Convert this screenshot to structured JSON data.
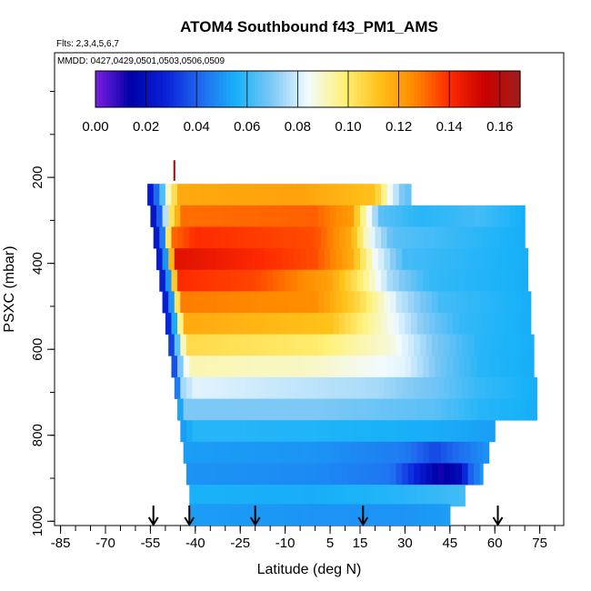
{
  "chart_data": {
    "type": "heatmap",
    "title": "ATOM4 Southbound f43_PM1_AMS",
    "subtitle_flights": "Flts: 2,3,4,5,6,7",
    "subtitle_dates": "MMDD: 0427,0429,0501,0503,0506,0509",
    "xlabel": "Latitude (deg N)",
    "ylabel": "PSXC (mbar)",
    "xlim": [
      -87,
      83
    ],
    "ylim": [
      1010,
      -90
    ],
    "x_ticks": [
      -85,
      -70,
      -55,
      -40,
      -25,
      -10,
      5,
      15,
      30,
      45,
      60,
      75
    ],
    "x_tick_labels": [
      "-85",
      "-70",
      "-55",
      "-40",
      "-25",
      "-10",
      "5",
      "15",
      "30",
      "45",
      "60",
      "75"
    ],
    "y_ticks": [
      200,
      400,
      600,
      800,
      1000
    ],
    "y_tick_labels": [
      "200",
      "400",
      "600",
      "800",
      "1000"
    ],
    "colorbar": {
      "min": 0.0,
      "max": 0.168,
      "ticks": [
        0.0,
        0.02,
        0.04,
        0.06,
        0.08,
        0.1,
        0.12,
        0.14,
        0.16
      ],
      "tick_labels": [
        "0.00",
        "0.02",
        "0.04",
        "0.06",
        "0.08",
        "0.10",
        "0.12",
        "0.14",
        "0.16"
      ],
      "colors": [
        "#7a1fe0",
        "#0000a8",
        "#0a22d8",
        "#1f6cf0",
        "#19b2f8",
        "#7ec8f5",
        "#f2fbff",
        "#fff27a",
        "#ffc21a",
        "#ff8a00",
        "#ff2a00",
        "#c80000",
        "#a01e1e"
      ]
    },
    "levels": [
      {
        "p": 240,
        "lat_min": -56,
        "lat_max": 32,
        "anchors": [
          [
            -56,
            0.016
          ],
          [
            -52,
            0.05
          ],
          [
            -49,
            0.09
          ],
          [
            -45,
            0.118
          ],
          [
            -5,
            0.12
          ],
          [
            20,
            0.112
          ],
          [
            25,
            0.085
          ],
          [
            29,
            0.07
          ],
          [
            32,
            0.065
          ]
        ]
      },
      {
        "p": 290,
        "lat_min": -55,
        "lat_max": 70,
        "anchors": [
          [
            -55,
            0.014
          ],
          [
            -52,
            0.04
          ],
          [
            -49,
            0.095
          ],
          [
            -44,
            0.13
          ],
          [
            0,
            0.132
          ],
          [
            12,
            0.122
          ],
          [
            17,
            0.09
          ],
          [
            22,
            0.065
          ],
          [
            35,
            0.058
          ],
          [
            55,
            0.062
          ],
          [
            70,
            0.055
          ]
        ]
      },
      {
        "p": 340,
        "lat_min": -54,
        "lat_max": 70,
        "anchors": [
          [
            -54,
            0.014
          ],
          [
            -51,
            0.045
          ],
          [
            -48,
            0.13
          ],
          [
            -40,
            0.14
          ],
          [
            0,
            0.135
          ],
          [
            12,
            0.118
          ],
          [
            18,
            0.085
          ],
          [
            26,
            0.065
          ],
          [
            70,
            0.055
          ]
        ]
      },
      {
        "p": 390,
        "lat_min": -53,
        "lat_max": 71,
        "anchors": [
          [
            -53,
            0.014
          ],
          [
            -50,
            0.05
          ],
          [
            -47,
            0.148
          ],
          [
            -38,
            0.146
          ],
          [
            0,
            0.135
          ],
          [
            12,
            0.118
          ],
          [
            20,
            0.085
          ],
          [
            30,
            0.062
          ],
          [
            71,
            0.055
          ]
        ]
      },
      {
        "p": 440,
        "lat_min": -52,
        "lat_max": 71,
        "anchors": [
          [
            -52,
            0.014
          ],
          [
            -49,
            0.05
          ],
          [
            -46,
            0.14
          ],
          [
            -20,
            0.136
          ],
          [
            5,
            0.12
          ],
          [
            15,
            0.1
          ],
          [
            25,
            0.075
          ],
          [
            38,
            0.06
          ],
          [
            71,
            0.055
          ]
        ]
      },
      {
        "p": 490,
        "lat_min": -51,
        "lat_max": 72,
        "anchors": [
          [
            -51,
            0.014
          ],
          [
            -48,
            0.05
          ],
          [
            -45,
            0.128
          ],
          [
            0,
            0.125
          ],
          [
            15,
            0.105
          ],
          [
            28,
            0.078
          ],
          [
            42,
            0.062
          ],
          [
            72,
            0.055
          ]
        ]
      },
      {
        "p": 540,
        "lat_min": -50,
        "lat_max": 72,
        "anchors": [
          [
            -50,
            0.016
          ],
          [
            -47,
            0.055
          ],
          [
            -44,
            0.118
          ],
          [
            5,
            0.112
          ],
          [
            22,
            0.09
          ],
          [
            35,
            0.072
          ],
          [
            48,
            0.06
          ],
          [
            72,
            0.055
          ]
        ]
      },
      {
        "p": 590,
        "lat_min": -49,
        "lat_max": 73,
        "anchors": [
          [
            -49,
            0.018
          ],
          [
            -46,
            0.065
          ],
          [
            -43,
            0.105
          ],
          [
            0,
            0.1
          ],
          [
            25,
            0.088
          ],
          [
            40,
            0.07
          ],
          [
            55,
            0.058
          ],
          [
            73,
            0.055
          ]
        ]
      },
      {
        "p": 640,
        "lat_min": -48,
        "lat_max": 73,
        "anchors": [
          [
            -48,
            0.02
          ],
          [
            -45,
            0.07
          ],
          [
            -42,
            0.092
          ],
          [
            0,
            0.09
          ],
          [
            30,
            0.082
          ],
          [
            42,
            0.068
          ],
          [
            55,
            0.058
          ],
          [
            73,
            0.055
          ]
        ]
      },
      {
        "p": 690,
        "lat_min": -47,
        "lat_max": 74,
        "anchors": [
          [
            -47,
            0.03
          ],
          [
            -44,
            0.075
          ],
          [
            -40,
            0.082
          ],
          [
            20,
            0.075
          ],
          [
            40,
            0.068
          ],
          [
            55,
            0.06
          ],
          [
            74,
            0.055
          ]
        ]
      },
      {
        "p": 740,
        "lat_min": -46,
        "lat_max": 74,
        "anchors": [
          [
            -46,
            0.045
          ],
          [
            -43,
            0.07
          ],
          [
            0,
            0.07
          ],
          [
            40,
            0.065
          ],
          [
            55,
            0.058
          ],
          [
            74,
            0.055
          ]
        ]
      },
      {
        "p": 790,
        "lat_min": -45,
        "lat_max": 60,
        "anchors": [
          [
            -45,
            0.05
          ],
          [
            -40,
            0.058
          ],
          [
            0,
            0.057
          ],
          [
            40,
            0.055
          ],
          [
            60,
            0.052
          ]
        ]
      },
      {
        "p": 840,
        "lat_min": -44,
        "lat_max": 58,
        "anchors": [
          [
            -44,
            0.052
          ],
          [
            0,
            0.05
          ],
          [
            30,
            0.045
          ],
          [
            40,
            0.035
          ],
          [
            45,
            0.04
          ],
          [
            58,
            0.05
          ]
        ]
      },
      {
        "p": 890,
        "lat_min": -43,
        "lat_max": 56,
        "anchors": [
          [
            -43,
            0.05
          ],
          [
            0,
            0.048
          ],
          [
            25,
            0.044
          ],
          [
            35,
            0.025
          ],
          [
            42,
            0.012
          ],
          [
            48,
            0.018
          ],
          [
            52,
            0.04
          ],
          [
            56,
            0.05
          ]
        ]
      },
      {
        "p": 940,
        "lat_min": -42,
        "lat_max": 50,
        "anchors": [
          [
            -42,
            0.056
          ],
          [
            0,
            0.055
          ],
          [
            30,
            0.058
          ],
          [
            50,
            0.062
          ]
        ]
      },
      {
        "p": 985,
        "lat_min": -42,
        "lat_max": 45,
        "anchors": [
          [
            -42,
            0.052
          ],
          [
            0,
            0.05
          ],
          [
            30,
            0.05
          ],
          [
            45,
            0.052
          ]
        ]
      }
    ],
    "arrow_latitudes": [
      -54,
      -42,
      -20,
      16,
      61
    ],
    "marker_latitude": -47,
    "marker_pressure": 200
  }
}
